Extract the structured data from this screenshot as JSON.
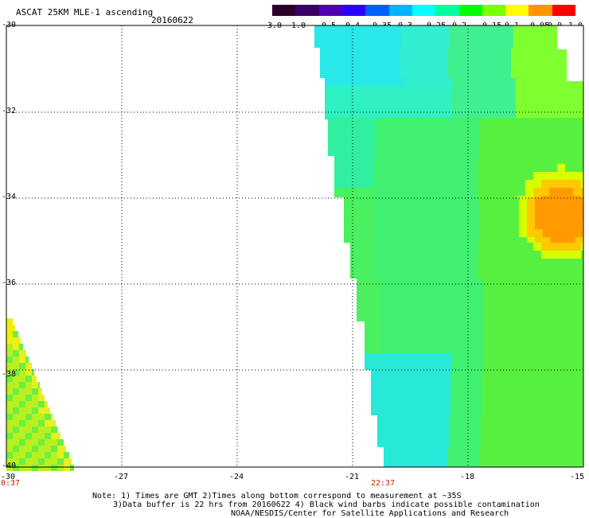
{
  "header": {
    "title": "ASCAT 25KM MLE-1 ascending",
    "date": "20160622"
  },
  "colorbar": {
    "labels": [
      "-3.0",
      "-1.0",
      "-0.5",
      "-0.4",
      "-0.35",
      "-0.3",
      "-0.25",
      "-0.2",
      "-0.15",
      "-0.1",
      "-0.05",
      "0.0",
      "1.0"
    ],
    "colors": [
      "#2a002a",
      "#3a0066",
      "#5000b4",
      "#2a00ff",
      "#0060ff",
      "#00b4ff",
      "#00ffff",
      "#00ffa0",
      "#00ff00",
      "#7cff00",
      "#ffff00",
      "#ff9600",
      "#ff0000"
    ]
  },
  "map": {
    "lat_labels": [
      "-30",
      "-32",
      "-34",
      "-36",
      "-38",
      "-40"
    ],
    "lon_labels": [
      "-30",
      "-27",
      "-24",
      "-21",
      "-18",
      "-15"
    ],
    "pass_times": [
      "0:37",
      "22:37"
    ]
  },
  "notes": {
    "line1": "Note: 1) Times are GMT 2)Times along bottom correspond to measurement at ~35S",
    "line2": "3)Data buffer is 22 hrs from 20160622 4) Black wind barbs indicate possible contamination",
    "line3": "NOAA/NESDIS/Center for Satellite Applications and Research"
  }
}
